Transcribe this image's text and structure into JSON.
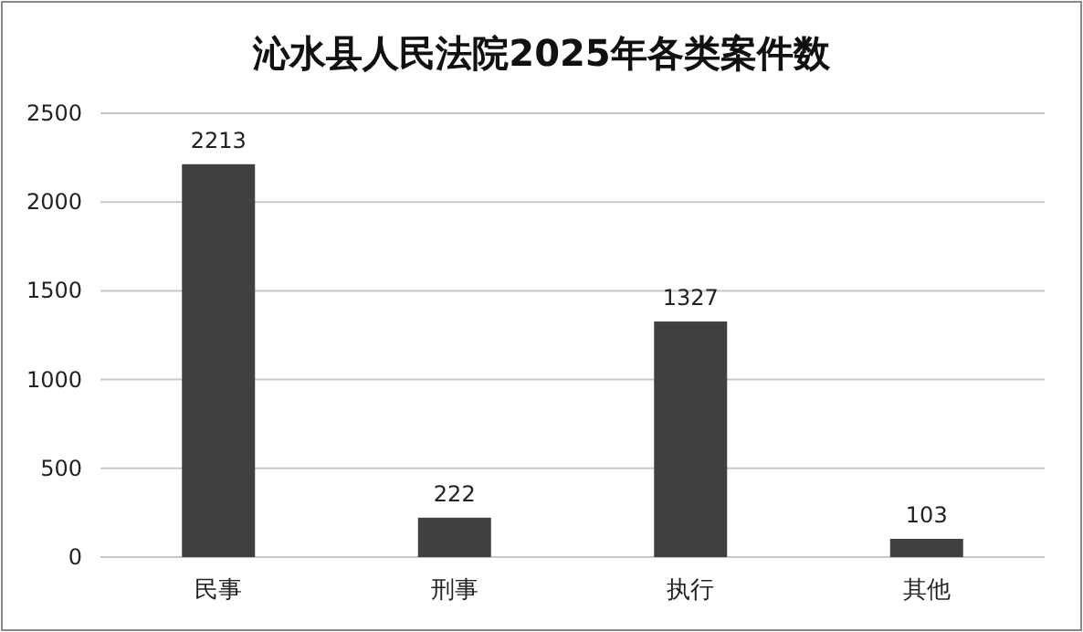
{
  "chart_data": {
    "type": "bar",
    "title": "沁水县人民法院2025年各类案件数",
    "categories": [
      "民事",
      "刑事",
      "执行",
      "其他"
    ],
    "values": [
      2213,
      222,
      1327,
      103
    ],
    "color": "#404040",
    "ylim": [
      0,
      2500
    ],
    "yticks": [
      0,
      500,
      1000,
      1500,
      2000,
      2500
    ],
    "grid": "y",
    "data_labels": true
  }
}
